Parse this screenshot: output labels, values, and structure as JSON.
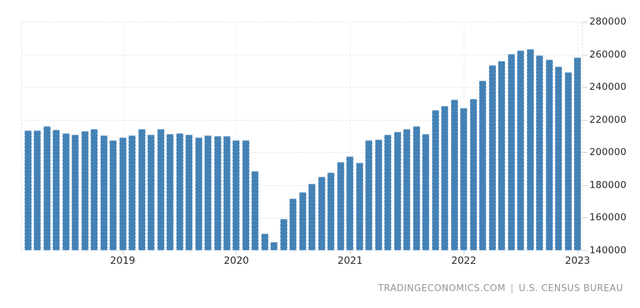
{
  "chart_data": {
    "type": "bar",
    "title": "",
    "xlabel": "",
    "ylabel": "",
    "bar_color": "#4482b6",
    "grid": true,
    "legend_position": "none",
    "ylim": [
      140000,
      280000
    ],
    "ytick_step": 20000,
    "yticks": [
      140000,
      160000,
      180000,
      200000,
      220000,
      240000,
      260000,
      280000
    ],
    "ytick_labels": [
      "140000",
      "160000",
      "180000",
      "200000",
      "220000",
      "240000",
      "260000",
      "280000"
    ],
    "xticks": [
      {
        "label": "2019",
        "bar_index": 10
      },
      {
        "label": "2020",
        "bar_index": 22
      },
      {
        "label": "2021",
        "bar_index": 34
      },
      {
        "label": "2022",
        "bar_index": 46
      },
      {
        "label": "2023",
        "bar_index": 58
      }
    ],
    "x": [
      "2018-03",
      "2018-04",
      "2018-05",
      "2018-06",
      "2018-07",
      "2018-08",
      "2018-09",
      "2018-10",
      "2018-11",
      "2018-12",
      "2019-01",
      "2019-02",
      "2019-03",
      "2019-04",
      "2019-05",
      "2019-06",
      "2019-07",
      "2019-08",
      "2019-09",
      "2019-10",
      "2019-11",
      "2019-12",
      "2020-01",
      "2020-02",
      "2020-03",
      "2020-04",
      "2020-05",
      "2020-06",
      "2020-07",
      "2020-08",
      "2020-09",
      "2020-10",
      "2020-11",
      "2020-12",
      "2021-01",
      "2021-02",
      "2021-03",
      "2021-04",
      "2021-05",
      "2021-06",
      "2021-07",
      "2021-08",
      "2021-09",
      "2021-10",
      "2021-11",
      "2021-12",
      "2022-01",
      "2022-02",
      "2022-03",
      "2022-04",
      "2022-05",
      "2022-06",
      "2022-07",
      "2022-08",
      "2022-09",
      "2022-10",
      "2022-11",
      "2022-12",
      "2023-01"
    ],
    "values": [
      213300,
      213300,
      216200,
      213800,
      211600,
      210800,
      212900,
      214400,
      210500,
      207600,
      209000,
      210500,
      214100,
      210800,
      214100,
      211200,
      211900,
      210800,
      209000,
      210500,
      210200,
      210100,
      207300,
      207600,
      188700,
      150200,
      145200,
      159500,
      171700,
      175600,
      180600,
      184900,
      187800,
      194000,
      197600,
      193500,
      207600,
      207900,
      210800,
      212700,
      214500,
      216200,
      211500,
      226000,
      228400,
      232300,
      227300,
      232700,
      244100,
      253300,
      256000,
      260400,
      262200,
      263300,
      259300,
      257000,
      252400,
      249200,
      258100
    ]
  },
  "footer": {
    "source_site": "TRADINGECONOMICS.COM",
    "separator": "|",
    "source_name": "U.S. CENSUS BUREAU"
  }
}
